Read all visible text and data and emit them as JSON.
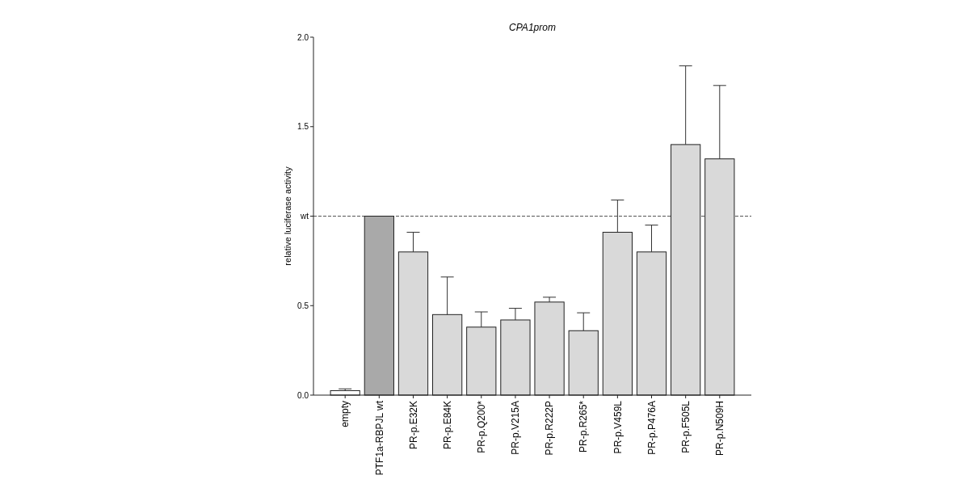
{
  "chart_data": {
    "type": "bar",
    "title": "CPA1prom",
    "ylabel": "relative luciferase activity",
    "categories": [
      "empty",
      "PTF1a-RBPJL wt",
      "PR-p.E32K",
      "PR-p.E84K",
      "PR-p.Q200*",
      "PR-p.V215A",
      "PR-p.R222P",
      "PR-p.R265*",
      "PR-p.V459L",
      "PR-p.P476A",
      "PR-p.F505L",
      "PR-p.N509H"
    ],
    "values": [
      0.025,
      1.0,
      0.8,
      0.45,
      0.38,
      0.42,
      0.52,
      0.36,
      0.91,
      0.8,
      1.4,
      1.32
    ],
    "errors": [
      0.01,
      null,
      0.11,
      0.21,
      0.085,
      0.065,
      0.027,
      0.1,
      0.18,
      0.15,
      0.44,
      0.41
    ],
    "colors": [
      "#ffffff",
      "#a9a9a9",
      "#d9d9d9",
      "#d9d9d9",
      "#d9d9d9",
      "#d9d9d9",
      "#d9d9d9",
      "#d9d9d9",
      "#d9d9d9",
      "#d9d9d9",
      "#d9d9d9",
      "#d9d9d9"
    ],
    "ylim": [
      0,
      2
    ],
    "yticks": [
      {
        "value": 0,
        "label": "0.0"
      },
      0.5,
      {
        "value": 1,
        "label": "wt"
      },
      1.5,
      {
        "value": 2,
        "label": "2.0"
      }
    ],
    "ref_lines": [
      {
        "axis": "y",
        "value": 1,
        "line_style": "dashed",
        "color": "#555555"
      }
    ],
    "grid": false
  }
}
